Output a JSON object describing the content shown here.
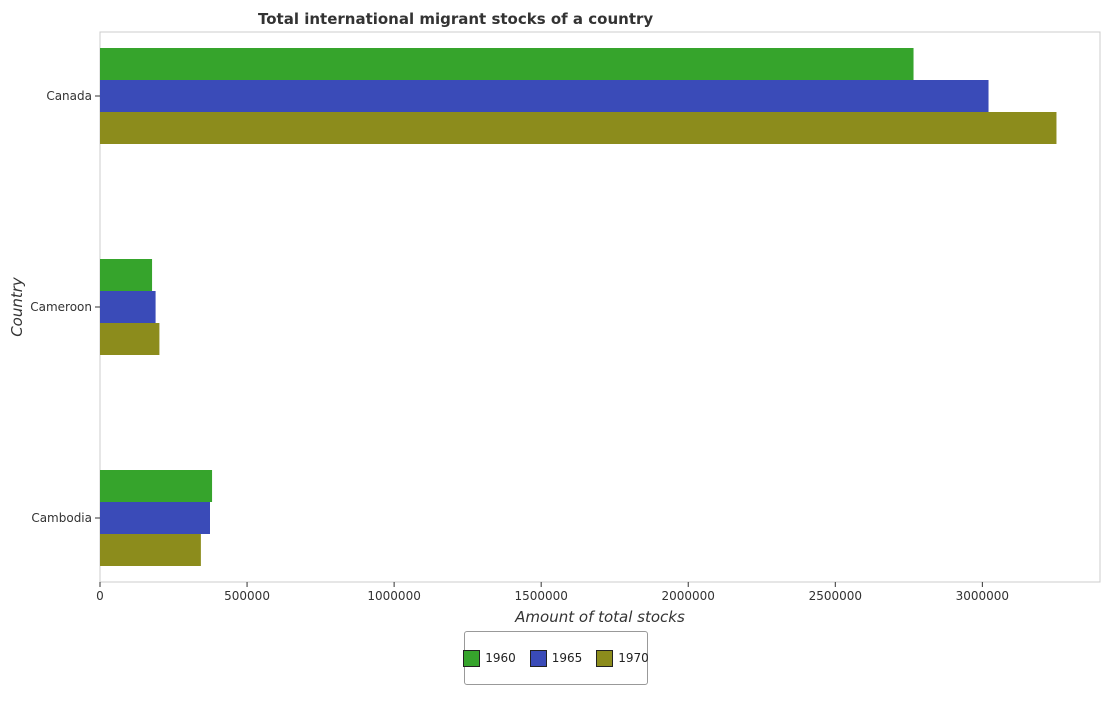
{
  "chart_data": {
    "type": "bar",
    "orientation": "horizontal",
    "title": "Total international migrant stocks of a country",
    "xlabel": "Amount of total stocks",
    "ylabel": "Country",
    "categories": [
      "Cambodia",
      "Cameroon",
      "Canada"
    ],
    "series": [
      {
        "name": "1960",
        "color": "#36a42c",
        "values": [
          381000,
          177000,
          2766000
        ]
      },
      {
        "name": "1965",
        "color": "#3a4bb8",
        "values": [
          374000,
          189000,
          3021000
        ]
      },
      {
        "name": "1970",
        "color": "#8c8c1c",
        "values": [
          343000,
          202000,
          3252000
        ]
      }
    ],
    "xlim": [
      0,
      3400000
    ],
    "xticks": [
      0,
      500000,
      1000000,
      1500000,
      2000000,
      2500000,
      3000000
    ],
    "xtick_labels": [
      "0",
      "500000",
      "1000000",
      "1500000",
      "2000000",
      "2500000",
      "3000000"
    ],
    "grid": false,
    "legend_position": "bottom-center"
  }
}
